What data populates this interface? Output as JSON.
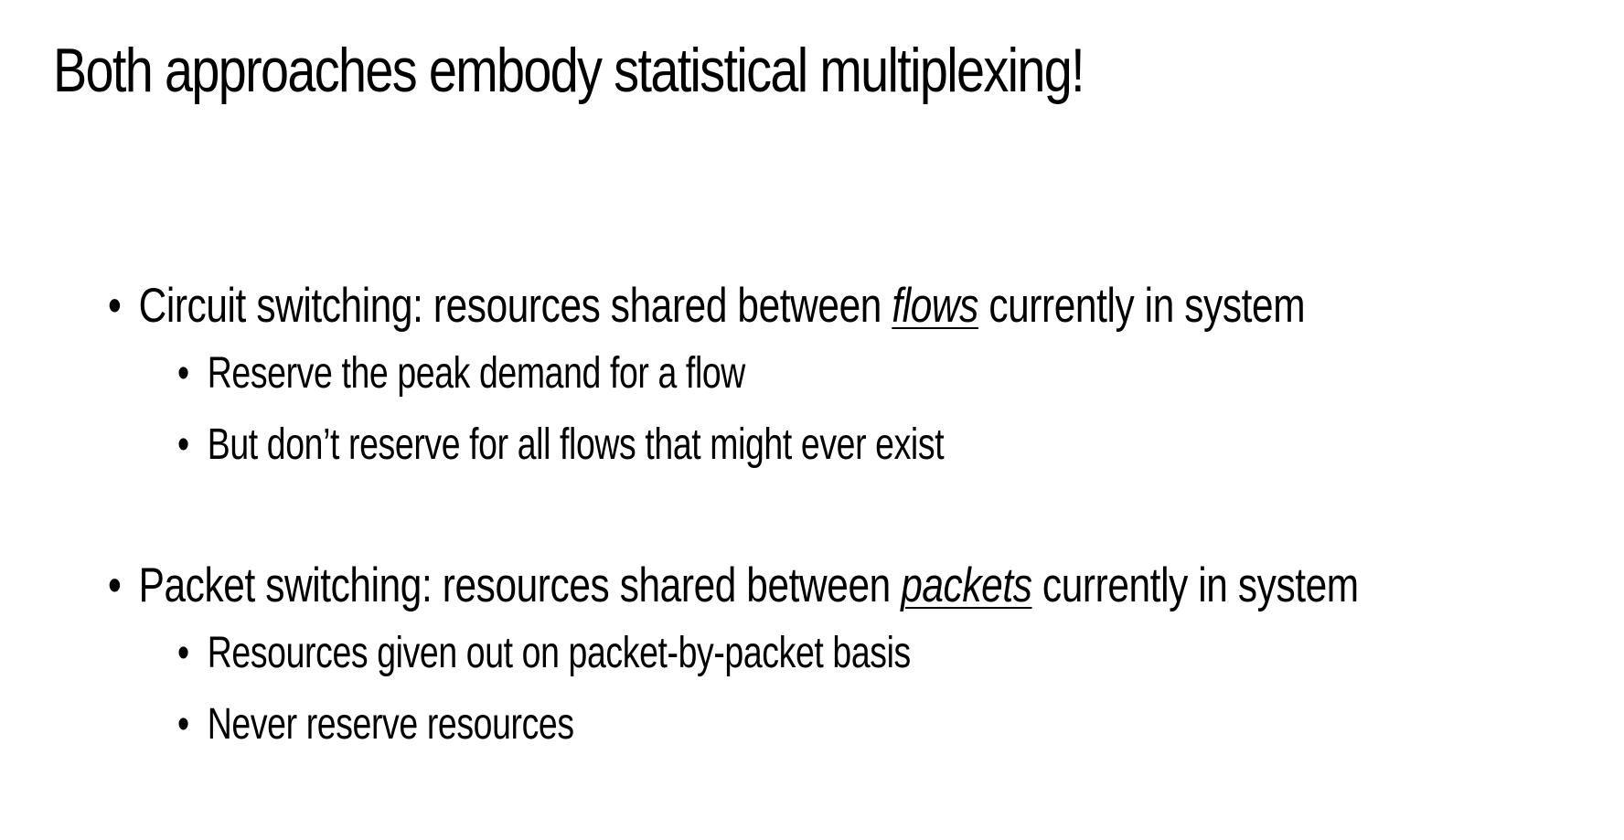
{
  "slide": {
    "title": "Both approaches embody statistical multiplexing!",
    "bullets": [
      {
        "prefix": "Circuit switching: resources shared between ",
        "emphasis": "flows",
        "suffix": " currently in system",
        "sub": [
          "Reserve the peak demand for a flow",
          "But don’t reserve for all flows that might ever exist"
        ]
      },
      {
        "prefix": "Packet switching: resources shared between ",
        "emphasis": "packets",
        "suffix": " currently in system",
        "sub": [
          "Resources given out on packet-by-packet basis",
          "Never reserve resources"
        ]
      }
    ],
    "bullet_glyph": "•"
  }
}
